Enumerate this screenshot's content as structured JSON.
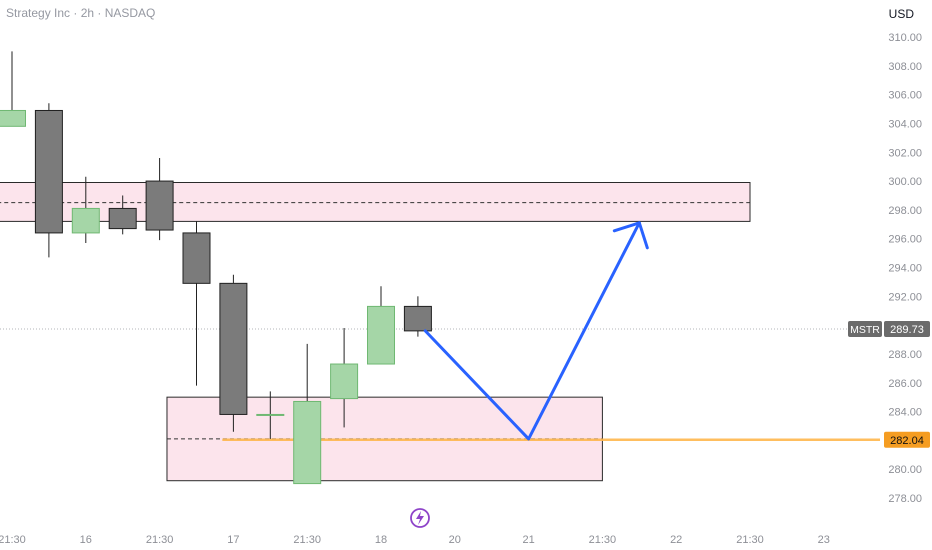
{
  "header": {
    "title": "Strategy Inc · 2h · NASDAQ",
    "currency": "USD"
  },
  "colors": {
    "up": "#a5d6a7",
    "up_border": "#6fb872",
    "down": "#7b7b7b",
    "down_border": "#202020",
    "zone_fill": "#fce4ec",
    "zone_border": "#2a2a2a",
    "arrow": "#2962ff",
    "level": "#ffb74d",
    "level_badge": "#f59d22",
    "price_badge": "#6b6b6b"
  },
  "chart_data": {
    "type": "candlestick",
    "symbol": "MSTR",
    "last_price": "289.73",
    "level_price": "282.04",
    "ylim": [
      276.7,
      311.5
    ],
    "xlim": [
      -0.2,
      22.5
    ],
    "y_ticks": [
      "310.00",
      "308.00",
      "306.00",
      "304.00",
      "302.00",
      "300.00",
      "298.00",
      "296.00",
      "294.00",
      "292.00",
      "290.00",
      "288.00",
      "286.00",
      "284.00",
      "282.00",
      "280.00",
      "278.00"
    ],
    "x_ticks": [
      {
        "label": "21:30",
        "x": 0
      },
      {
        "label": "16",
        "x": 2
      },
      {
        "label": "21:30",
        "x": 4
      },
      {
        "label": "17",
        "x": 6
      },
      {
        "label": "21:30",
        "x": 8
      },
      {
        "label": "18",
        "x": 10
      },
      {
        "label": "20",
        "x": 12
      },
      {
        "label": "21",
        "x": 14
      },
      {
        "label": "21:30",
        "x": 16
      },
      {
        "label": "22",
        "x": 18
      },
      {
        "label": "21:30",
        "x": 20
      },
      {
        "label": "23",
        "x": 22
      }
    ],
    "candles": [
      {
        "x": 0.0,
        "open": 303.8,
        "high": 309.0,
        "low": 303.8,
        "close": 304.9
      },
      {
        "x": 1.0,
        "open": 304.9,
        "high": 305.4,
        "low": 294.7,
        "close": 296.4
      },
      {
        "x": 2.0,
        "open": 296.4,
        "high": 300.3,
        "low": 295.7,
        "close": 298.1
      },
      {
        "x": 3.0,
        "open": 298.1,
        "high": 299.0,
        "low": 296.3,
        "close": 296.7
      },
      {
        "x": 4.0,
        "open": 300.0,
        "high": 301.6,
        "low": 295.9,
        "close": 296.6
      },
      {
        "x": 5.0,
        "open": 296.4,
        "high": 297.2,
        "low": 285.8,
        "close": 292.9
      },
      {
        "x": 6.0,
        "open": 292.9,
        "high": 293.5,
        "low": 282.6,
        "close": 283.8
      },
      {
        "x": 7.0,
        "open": 283.8,
        "high": 285.4,
        "low": 282.1,
        "close": 283.8
      },
      {
        "x": 8.0,
        "open": 279.0,
        "high": 288.7,
        "low": 279.0,
        "close": 284.7
      },
      {
        "x": 9.0,
        "open": 284.9,
        "high": 289.8,
        "low": 282.9,
        "close": 287.3
      },
      {
        "x": 10.0,
        "open": 287.3,
        "high": 292.7,
        "low": 287.3,
        "close": 291.3
      },
      {
        "x": 11.0,
        "open": 291.3,
        "high": 292.0,
        "low": 289.2,
        "close": 289.6
      }
    ],
    "zones": [
      {
        "x0": -0.4,
        "x1": 20.0,
        "y_top": 299.9,
        "y_bottom": 297.2,
        "mid": 298.5
      },
      {
        "x0": 4.2,
        "x1": 16.0,
        "y_top": 285.0,
        "y_bottom": 279.2,
        "mid": 282.1
      }
    ],
    "projection_path": [
      {
        "x": 11.2,
        "y": 289.6
      },
      {
        "x": 14.0,
        "y": 282.1
      },
      {
        "x": 17.0,
        "y": 297.1
      }
    ]
  }
}
